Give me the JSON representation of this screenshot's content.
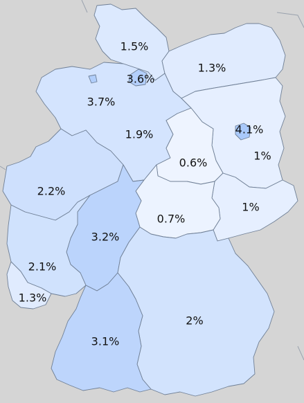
{
  "map": {
    "colors": {
      "background": "#d5d5d5",
      "lowest": "#eef4ff",
      "highest": "#a9c9fb",
      "border": "#6f7f95"
    },
    "states": [
      {
        "id": "schleswig-holstein",
        "label": "1.5%",
        "value": 1.5
      },
      {
        "id": "hamburg",
        "label": "3.6%",
        "value": 3.6
      },
      {
        "id": "mecklenburg-vorpommern",
        "label": "1.3%",
        "value": 1.3
      },
      {
        "id": "bremen",
        "label": "3.7%",
        "value": 3.7
      },
      {
        "id": "lower-saxony",
        "label": "1.9%",
        "value": 1.9
      },
      {
        "id": "berlin",
        "label": "4.1%",
        "value": 4.1
      },
      {
        "id": "brandenburg",
        "label": "1%",
        "value": 1.0
      },
      {
        "id": "saxony-anhalt",
        "label": "0.6%",
        "value": 0.6
      },
      {
        "id": "north-rhine-westphalia",
        "label": "2.2%",
        "value": 2.2
      },
      {
        "id": "saxony",
        "label": "1%",
        "value": 1.0
      },
      {
        "id": "thuringia",
        "label": "0.7%",
        "value": 0.7
      },
      {
        "id": "hesse",
        "label": "3.2%",
        "value": 3.2
      },
      {
        "id": "rhineland-palatinate",
        "label": "2.1%",
        "value": 2.1
      },
      {
        "id": "saarland",
        "label": "1.3%",
        "value": 1.3
      },
      {
        "id": "bavaria",
        "label": "2%",
        "value": 2.0
      },
      {
        "id": "baden-wurttemberg",
        "label": "3.1%",
        "value": 3.1
      }
    ]
  }
}
